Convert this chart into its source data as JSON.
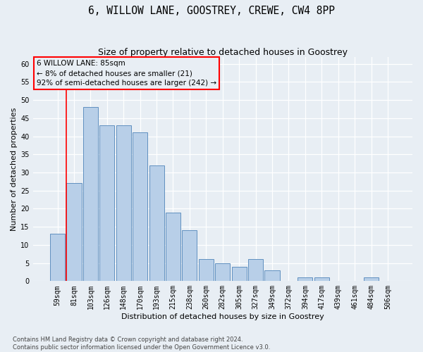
{
  "title": "6, WILLOW LANE, GOOSTREY, CREWE, CW4 8PP",
  "subtitle": "Size of property relative to detached houses in Goostrey",
  "xlabel": "Distribution of detached houses by size in Goostrey",
  "ylabel": "Number of detached properties",
  "bar_labels": [
    "59sqm",
    "81sqm",
    "103sqm",
    "126sqm",
    "148sqm",
    "170sqm",
    "193sqm",
    "215sqm",
    "238sqm",
    "260sqm",
    "282sqm",
    "305sqm",
    "327sqm",
    "349sqm",
    "372sqm",
    "394sqm",
    "417sqm",
    "439sqm",
    "461sqm",
    "484sqm",
    "506sqm"
  ],
  "bar_values": [
    13,
    27,
    48,
    43,
    43,
    41,
    32,
    19,
    14,
    6,
    5,
    4,
    6,
    3,
    0,
    1,
    1,
    0,
    0,
    1,
    0
  ],
  "bar_color": "#b8cfe8",
  "bar_edge_color": "#6090c0",
  "ylim": [
    0,
    62
  ],
  "yticks": [
    0,
    5,
    10,
    15,
    20,
    25,
    30,
    35,
    40,
    45,
    50,
    55,
    60
  ],
  "property_label": "6 WILLOW LANE: 85sqm",
  "annotation_line1": "← 8% of detached houses are smaller (21)",
  "annotation_line2": "92% of semi-detached houses are larger (242) →",
  "footer_line1": "Contains HM Land Registry data © Crown copyright and database right 2024.",
  "footer_line2": "Contains public sector information licensed under the Open Government Licence v3.0.",
  "bg_color": "#e8eef4",
  "grid_color": "#ffffff",
  "title_fontsize": 10.5,
  "subtitle_fontsize": 9,
  "axis_label_fontsize": 8,
  "tick_fontsize": 7,
  "footer_fontsize": 6,
  "vline_x": 0.55,
  "annotation_text_fontsize": 7.5
}
